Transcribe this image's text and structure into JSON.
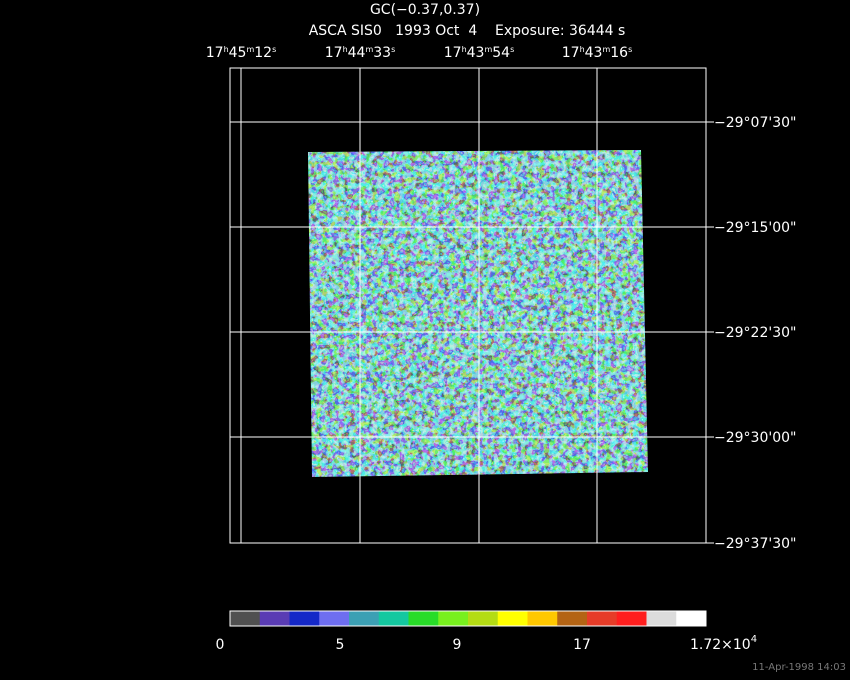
{
  "title": "GC(−0.37,0.37)",
  "subtitle": "ASCA SIS0   1993 Oct  4    Exposure: 36444 s",
  "ra_labels": [
    [
      "17",
      "h",
      "45",
      "m",
      "12",
      "s"
    ],
    [
      "17",
      "h",
      "44",
      "m",
      "33",
      "s"
    ],
    [
      "17",
      "h",
      "43",
      "m",
      "54",
      "s"
    ],
    [
      "17",
      "h",
      "43",
      "m",
      "16",
      "s"
    ]
  ],
  "dec_labels": [
    "−29°07'30\"",
    "−29°15'00\"",
    "−29°22'30\"",
    "−29°30'00\"",
    "−29°37'30\""
  ],
  "colorbar": {
    "colors": [
      "#505050",
      "#5a3cb4",
      "#1428c8",
      "#6e6ef0",
      "#3ca0b4",
      "#14c8a0",
      "#28dc28",
      "#78f01e",
      "#b4dc14",
      "#ffff00",
      "#ffc800",
      "#b46414",
      "#e63c28",
      "#ff1e1e",
      "#dcdcdc",
      "#ffffff"
    ],
    "labels": [
      "0",
      "5",
      "9",
      "17"
    ],
    "max_label": {
      "mantissa": "1.72×10",
      "exponent": "4"
    }
  },
  "footer": "11-Apr-1998 14:03"
}
